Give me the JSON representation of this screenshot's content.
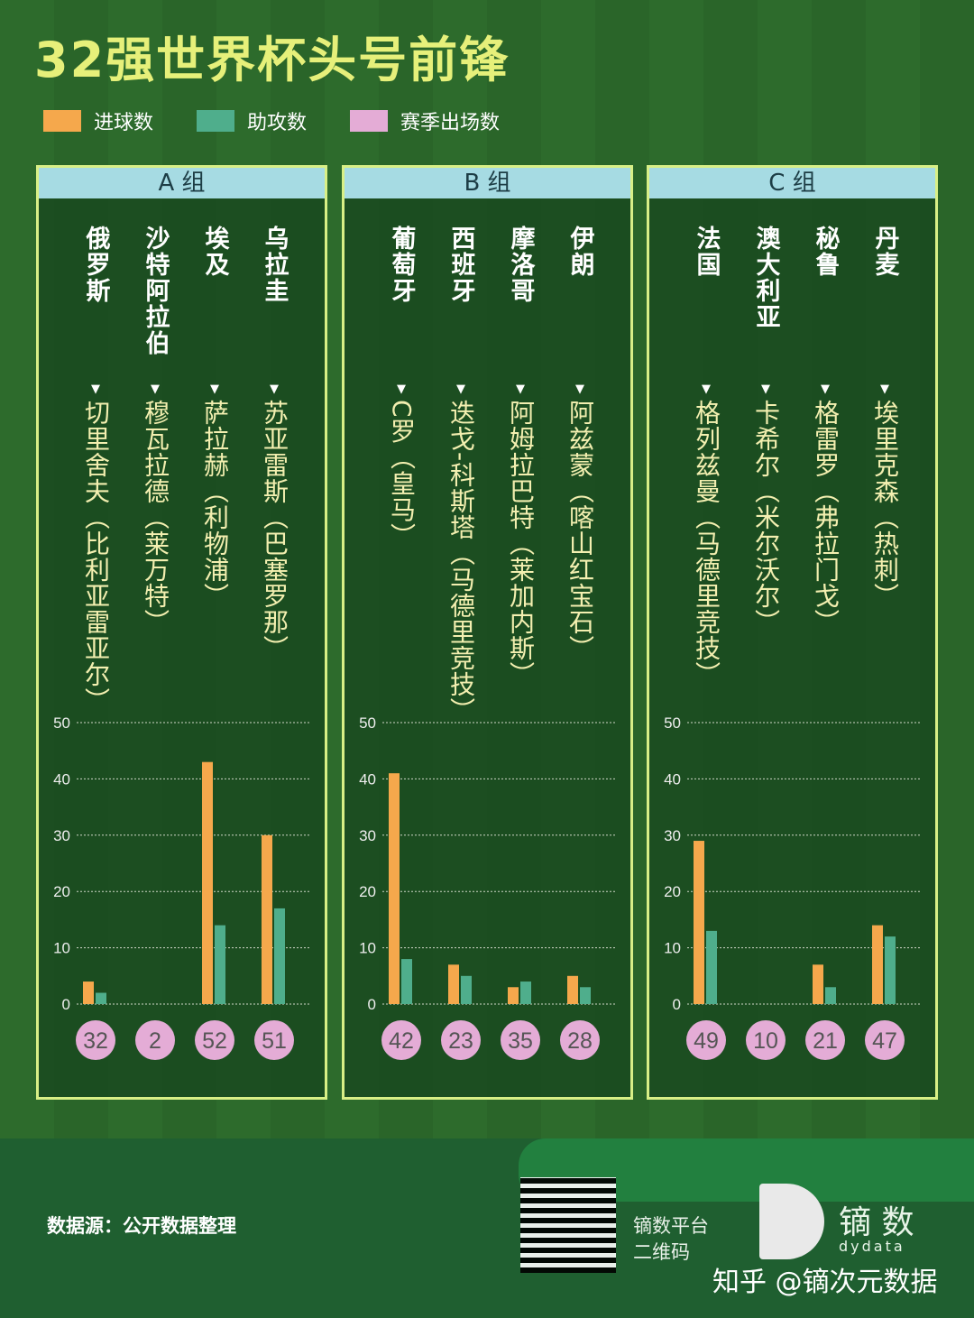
{
  "title": "32强世界杯头号前锋",
  "legend": [
    {
      "label": "进球数",
      "color": "#f5a84c"
    },
    {
      "label": "助攻数",
      "color": "#4fae8c"
    },
    {
      "label": "赛季出场数",
      "color": "#e4acd6"
    }
  ],
  "chart_data": {
    "type": "bar",
    "title": "32强世界杯头号前锋",
    "ylim": [
      0,
      50
    ],
    "yticks": [
      0,
      10,
      20,
      30,
      40,
      50
    ],
    "series_names": [
      "进球数",
      "助攻数",
      "赛季出场数"
    ],
    "groups": [
      {
        "name": "A 组",
        "teams": [
          {
            "country": "俄罗斯",
            "player": "切里舍夫（比利亚雷亚尔）",
            "goals": 4,
            "assists": 2,
            "apps": 32
          },
          {
            "country": "沙特阿拉伯",
            "player": "穆瓦拉德（莱万特）",
            "goals": 0,
            "assists": 0,
            "apps": 2
          },
          {
            "country": "埃及",
            "player": "萨拉赫（利物浦）",
            "goals": 43,
            "assists": 14,
            "apps": 52
          },
          {
            "country": "乌拉圭",
            "player": "苏亚雷斯（巴塞罗那）",
            "goals": 30,
            "assists": 17,
            "apps": 51
          }
        ]
      },
      {
        "name": "B 组",
        "teams": [
          {
            "country": "葡萄牙",
            "player": "C罗（皇马）",
            "goals": 41,
            "assists": 8,
            "apps": 42
          },
          {
            "country": "西班牙",
            "player": "迭戈-科斯塔（马德里竞技）",
            "goals": 7,
            "assists": 5,
            "apps": 23
          },
          {
            "country": "摩洛哥",
            "player": "阿姆拉巴特（莱加内斯）",
            "goals": 3,
            "assists": 4,
            "apps": 35
          },
          {
            "country": "伊朗",
            "player": "阿兹蒙（喀山红宝石）",
            "goals": 5,
            "assists": 3,
            "apps": 28
          }
        ]
      },
      {
        "name": "C 组",
        "teams": [
          {
            "country": "法国",
            "player": "格列兹曼（马德里竞技）",
            "goals": 29,
            "assists": 13,
            "apps": 49
          },
          {
            "country": "澳大利亚",
            "player": "卡希尔（米尔沃尔）",
            "goals": 0,
            "assists": 0,
            "apps": 10
          },
          {
            "country": "秘鲁",
            "player": "格雷罗（弗拉门戈）",
            "goals": 7,
            "assists": 3,
            "apps": 21
          },
          {
            "country": "丹麦",
            "player": "埃里克森（热刺）",
            "goals": 14,
            "assists": 12,
            "apps": 47
          }
        ]
      }
    ]
  },
  "footer": {
    "source": "数据源：公开数据整理",
    "qr_label_1": "镝数平台",
    "qr_label_2": "二维码",
    "brand": "镝 数",
    "brand_en": "dydata",
    "watermark": "知乎 @镝次元数据"
  }
}
